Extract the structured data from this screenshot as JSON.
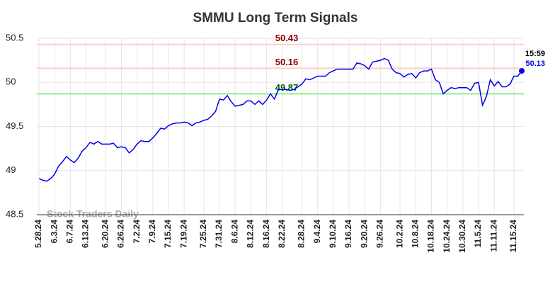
{
  "chart_data": {
    "type": "line",
    "title": "SMMU Long Term Signals",
    "watermark": "Stock Traders Daily",
    "categories": [
      "5.28.24",
      null,
      null,
      null,
      "6.3.24",
      null,
      null,
      null,
      "6.7.24",
      null,
      null,
      null,
      "6.13.24",
      null,
      null,
      null,
      null,
      "6.20.24",
      null,
      null,
      null,
      "6.26.24",
      null,
      null,
      null,
      "7.2.24",
      null,
      null,
      null,
      "7.9.24",
      null,
      null,
      null,
      "7.15.24",
      null,
      null,
      null,
      "7.19.24",
      null,
      null,
      null,
      null,
      "7.25.24",
      null,
      null,
      null,
      "7.31.24",
      null,
      null,
      null,
      "8.6.24",
      null,
      null,
      null,
      "8.12.24",
      null,
      null,
      null,
      "8.16.24",
      null,
      null,
      null,
      "8.22.24",
      null,
      null,
      null,
      null,
      "8.28.24",
      null,
      null,
      null,
      "9.4.24",
      null,
      null,
      null,
      "9.10.24",
      null,
      null,
      null,
      "9.16.24",
      null,
      null,
      null,
      "9.20.24",
      null,
      null,
      null,
      "9.26.24",
      null,
      null,
      null,
      null,
      "10.2.24",
      null,
      null,
      null,
      "10.8.24",
      null,
      null,
      null,
      "10.18.24",
      null,
      null,
      null,
      "10.24.24",
      null,
      null,
      null,
      "10.30.24",
      null,
      null,
      null,
      "11.5.24",
      null,
      null,
      null,
      "11.11.24",
      null,
      null,
      null,
      null,
      "11.15.24",
      null,
      null
    ],
    "series": [
      {
        "color": "#0000ee",
        "values": [
          48.91,
          48.89,
          48.88,
          48.91,
          48.96,
          49.05,
          49.1,
          49.16,
          49.12,
          49.09,
          49.14,
          49.22,
          49.26,
          49.32,
          49.3,
          49.33,
          49.3,
          49.3,
          49.3,
          49.31,
          49.26,
          49.27,
          49.26,
          49.2,
          49.24,
          49.3,
          49.34,
          49.33,
          49.33,
          49.37,
          49.42,
          49.48,
          49.47,
          49.51,
          49.53,
          49.54,
          49.54,
          49.55,
          49.54,
          49.51,
          49.54,
          49.55,
          49.57,
          49.58,
          49.62,
          49.67,
          49.81,
          49.8,
          49.85,
          49.78,
          49.73,
          49.74,
          49.75,
          49.79,
          49.79,
          49.75,
          49.79,
          49.75,
          49.8,
          49.87,
          49.81,
          49.92,
          49.92,
          49.92,
          49.91,
          49.92,
          49.95,
          49.98,
          50.04,
          50.03,
          50.05,
          50.07,
          50.07,
          50.07,
          50.11,
          50.13,
          50.15,
          50.15,
          50.15,
          50.15,
          50.15,
          50.22,
          50.21,
          50.19,
          50.15,
          50.23,
          50.24,
          50.25,
          50.27,
          50.25,
          50.15,
          50.11,
          50.1,
          50.06,
          50.09,
          50.1,
          50.05,
          50.11,
          50.13,
          50.13,
          50.15,
          50.03,
          50.0,
          49.87,
          49.91,
          49.94,
          49.93,
          49.94,
          49.94,
          49.94,
          49.91,
          49.99,
          50.0,
          49.74,
          49.84,
          50.03,
          49.96,
          50.01,
          49.95,
          49.95,
          49.98,
          50.07,
          50.07,
          50.13
        ]
      }
    ],
    "last_time": "15:59",
    "hlines": [
      {
        "value": 50.43,
        "color": "#ffcccc",
        "label_color": "#8b0000"
      },
      {
        "value": 50.16,
        "color": "#ffcccc",
        "label_color": "#8b0000"
      },
      {
        "value": 49.87,
        "color": "#90ee90",
        "label_color": "#006400"
      }
    ],
    "ylim": [
      48.5,
      50.5
    ],
    "yticks": [
      48.5,
      49,
      49.5,
      50,
      50.5
    ],
    "grid": true
  }
}
